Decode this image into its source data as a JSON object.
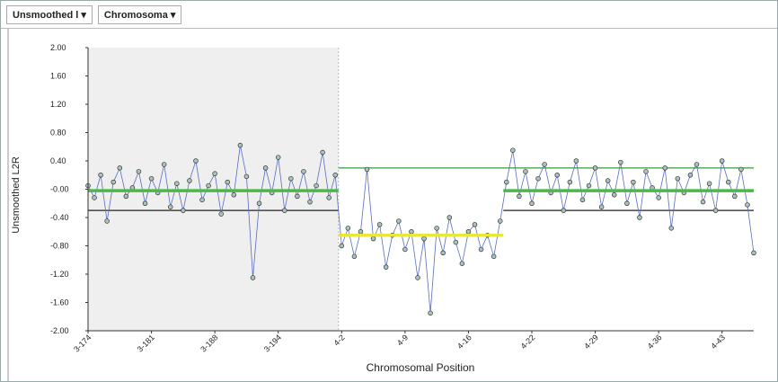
{
  "toolbar": [
    "Unsmoothed l",
    "Chromosoma"
  ],
  "chart_data": {
    "type": "line",
    "y_label": "Unsmoothed L2R",
    "x_label": "Chromosomal Position",
    "xlim": [
      0,
      105
    ],
    "xticks": [
      {
        "value": 0,
        "label": "3-174"
      },
      {
        "value": 10,
        "label": "3-181"
      },
      {
        "value": 20,
        "label": "3-188"
      },
      {
        "value": 30,
        "label": "3-194"
      },
      {
        "value": 40,
        "label": "4-2"
      },
      {
        "value": 50,
        "label": "4-9"
      },
      {
        "value": 60,
        "label": "4-16"
      },
      {
        "value": 70,
        "label": "4-22"
      },
      {
        "value": 80,
        "label": "4-29"
      },
      {
        "value": 90,
        "label": "4-36"
      },
      {
        "value": 100,
        "label": "4-43"
      }
    ],
    "ylim": [
      -2,
      2
    ],
    "yticks": [
      {
        "value": 2,
        "label": "2.00"
      },
      {
        "value": 1.6,
        "label": "1.60"
      },
      {
        "value": 1.2,
        "label": "1.20"
      },
      {
        "value": 0.8,
        "label": "0.80"
      },
      {
        "value": 0.4,
        "label": "0.40"
      },
      {
        "value": 0,
        "label": "-0.00"
      },
      {
        "value": -0.4,
        "label": "-0.40"
      },
      {
        "value": -0.8,
        "label": "-0.80"
      },
      {
        "value": -1.2,
        "label": "-1.20"
      },
      {
        "value": -1.6,
        "label": "-1.60"
      },
      {
        "value": -2,
        "label": "-2.00"
      }
    ],
    "color": "#5a6cc0",
    "marker_color": "#a9c4bc",
    "shaded_region": [
      0,
      39.5
    ],
    "segments": [
      {
        "x": [
          0,
          39.5
        ],
        "y": -0.02,
        "color": "#4cb848"
      },
      {
        "x": [
          39.5,
          65.5
        ],
        "y": -0.65,
        "color": "#e8e83a"
      },
      {
        "x": [
          65.5,
          105
        ],
        "y": -0.02,
        "color": "#4cb848"
      }
    ],
    "thresholds": [
      {
        "x": [
          39.5,
          105
        ],
        "y": 0.3,
        "color": "#3a9a3a"
      },
      {
        "x": [
          0,
          39.5
        ],
        "y": -0.3,
        "color": "#222222"
      },
      {
        "x": [
          65.5,
          105
        ],
        "y": -0.3,
        "color": "#222222"
      }
    ],
    "x": [
      0,
      1,
      2,
      3,
      4,
      5,
      6,
      7,
      8,
      9,
      10,
      11,
      12,
      13,
      14,
      15,
      16,
      17,
      18,
      19,
      20,
      21,
      22,
      23,
      24,
      25,
      26,
      27,
      28,
      29,
      30,
      31,
      32,
      33,
      34,
      35,
      36,
      37,
      38,
      39,
      40,
      41,
      42,
      43,
      44,
      45,
      46,
      47,
      48,
      49,
      50,
      51,
      52,
      53,
      54,
      55,
      56,
      57,
      58,
      59,
      60,
      61,
      62,
      63,
      64,
      65,
      66,
      67,
      68,
      69,
      70,
      71,
      72,
      73,
      74,
      75,
      76,
      77,
      78,
      79,
      80,
      81,
      82,
      83,
      84,
      85,
      86,
      87,
      88,
      89,
      90,
      91,
      92,
      93,
      94,
      95,
      96,
      97,
      98,
      99,
      100,
      101,
      102,
      103,
      104,
      105
    ],
    "values": [
      0.05,
      -0.12,
      0.2,
      -0.45,
      0.1,
      0.3,
      -0.1,
      0.02,
      0.25,
      -0.2,
      0.15,
      -0.05,
      0.35,
      -0.25,
      0.08,
      -0.3,
      0.12,
      0.4,
      -0.15,
      0.05,
      0.22,
      -0.35,
      0.1,
      -0.08,
      0.62,
      0.18,
      -1.25,
      -0.2,
      0.3,
      -0.05,
      0.45,
      -0.3,
      0.15,
      -0.1,
      0.25,
      -0.18,
      0.05,
      0.52,
      -0.12,
      0.2,
      -0.8,
      -0.55,
      -0.95,
      -0.6,
      0.28,
      -0.7,
      -0.5,
      -1.1,
      -0.65,
      -0.45,
      -0.85,
      -0.6,
      -1.25,
      -0.7,
      -1.75,
      -0.55,
      -0.9,
      -0.4,
      -0.75,
      -1.05,
      -0.6,
      -0.5,
      -0.85,
      -0.65,
      -0.95,
      -0.45,
      0.1,
      0.55,
      -0.1,
      0.25,
      -0.2,
      0.15,
      0.35,
      -0.05,
      0.2,
      -0.3,
      0.1,
      0.4,
      -0.15,
      0.05,
      0.3,
      -0.25,
      0.12,
      -0.08,
      0.38,
      -0.2,
      0.1,
      -0.4,
      0.25,
      0.02,
      -0.12,
      0.3,
      -0.55,
      0.15,
      -0.05,
      0.2,
      0.35,
      -0.18,
      0.08,
      -0.3,
      0.4,
      0.1,
      -0.1,
      0.28,
      -0.22,
      -0.9
    ]
  }
}
